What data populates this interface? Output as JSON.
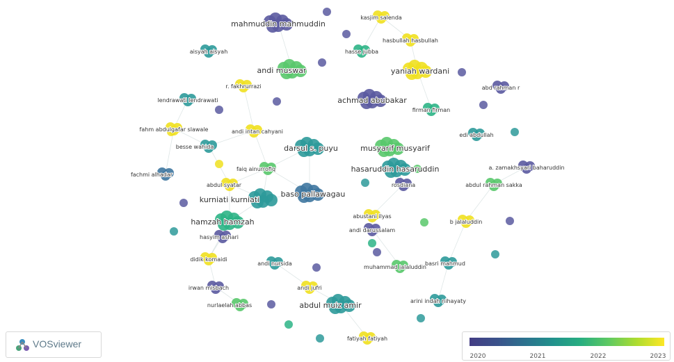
{
  "app": {
    "logo_text": "VOSviewer"
  },
  "legend": {
    "ticks": [
      "2020",
      "2021",
      "2022",
      "2023"
    ],
    "colors": [
      "#433d84",
      "#3b528b",
      "#2c728e",
      "#21918c",
      "#28ae80",
      "#5ec962",
      "#addc30",
      "#fde725"
    ]
  },
  "palette": {
    "2020": "#5b5aa0",
    "2020.5": "#3f77a0",
    "2021": "#2e9a9a",
    "2021.5": "#2db486",
    "2022": "#59c86b",
    "2023": "#f0e020"
  },
  "nodes": [
    {
      "label": "mahmuddin mahmuddin",
      "year": "2020",
      "size": "large"
    },
    {
      "label": "kasjim salenda",
      "year": "2023",
      "size": "small"
    },
    {
      "label": "hasbullah hasbullah",
      "year": "2023",
      "size": "small"
    },
    {
      "label": "aisyah aisyah",
      "year": "2021",
      "size": "small"
    },
    {
      "label": "hasse jubba",
      "year": "2021.5",
      "size": "small"
    },
    {
      "label": "andi muswar",
      "year": "2022",
      "size": "large"
    },
    {
      "label": "yaniah wardani",
      "year": "2023",
      "size": "large"
    },
    {
      "label": "r. fakhrurrazi",
      "year": "2023",
      "size": "small"
    },
    {
      "label": "abd rahman r",
      "year": "2020",
      "size": "small"
    },
    {
      "label": "lendrawati lendrawati",
      "year": "2021",
      "size": "small"
    },
    {
      "label": "achmad abubakar",
      "year": "2020",
      "size": "large"
    },
    {
      "label": "firman firman",
      "year": "2021.5",
      "size": "small"
    },
    {
      "label": "fahm abdulgafar slawale",
      "year": "2023",
      "size": "small"
    },
    {
      "label": "andi intan cahyani",
      "year": "2023",
      "size": "small"
    },
    {
      "label": "edi abdullah",
      "year": "2021",
      "size": "small"
    },
    {
      "label": "besse wahida",
      "year": "2021",
      "size": "small"
    },
    {
      "label": "darsul s. puyu",
      "year": "2021",
      "size": "large"
    },
    {
      "label": "musyarif musyarif",
      "year": "2022",
      "size": "large"
    },
    {
      "label": "faiq ainurrofiq",
      "year": "2022",
      "size": "small"
    },
    {
      "label": "hasaruddin hasaruddin",
      "year": "2021",
      "size": "large"
    },
    {
      "label": "a. zamakhsyari baharuddin",
      "year": "2020",
      "size": "small"
    },
    {
      "label": "fachmi alhadar",
      "year": "2020.5",
      "size": "small"
    },
    {
      "label": "abdul syatar",
      "year": "2023",
      "size": "small"
    },
    {
      "label": "rosdiana",
      "year": "2020",
      "size": "small"
    },
    {
      "label": "abdul rahman sakka",
      "year": "2022",
      "size": "small"
    },
    {
      "label": "baso pallawagau",
      "year": "2020.5",
      "size": "large"
    },
    {
      "label": "kurniati kurniati",
      "year": "2021",
      "size": "large"
    },
    {
      "label": "abustani ilyas",
      "year": "2023",
      "size": "small"
    },
    {
      "label": "hamzah hamzah",
      "year": "2021.5",
      "size": "large"
    },
    {
      "label": "b jalaluddin",
      "year": "2023",
      "size": "small"
    },
    {
      "label": "hasyim ashari",
      "year": "2020",
      "size": "small"
    },
    {
      "label": "andi darussalam",
      "year": "2020",
      "size": "small"
    },
    {
      "label": "didik komaidi",
      "year": "2023",
      "size": "small"
    },
    {
      "label": "andi nursida",
      "year": "2021",
      "size": "small"
    },
    {
      "label": "muhammad jalaluddin",
      "year": "2022",
      "size": "small"
    },
    {
      "label": "basri mahmud",
      "year": "2021",
      "size": "small"
    },
    {
      "label": "irwan misbach",
      "year": "2020",
      "size": "small"
    },
    {
      "label": "andi jufri",
      "year": "2023",
      "size": "small"
    },
    {
      "label": "arini indah nihayaty",
      "year": "2021",
      "size": "small"
    },
    {
      "label": "nurlaelah abbas",
      "year": "2022",
      "size": "small"
    },
    {
      "label": "abdul muiz amir",
      "year": "2021",
      "size": "large"
    },
    {
      "label": "fatiyah fatiyah",
      "year": "2023",
      "size": "small"
    }
  ],
  "extra_dots": [
    {
      "year": "2020"
    },
    {
      "year": "2020"
    },
    {
      "year": "2020"
    },
    {
      "year": "2020"
    },
    {
      "year": "2020"
    },
    {
      "year": "2020"
    },
    {
      "year": "2020"
    },
    {
      "year": "2021"
    },
    {
      "year": "2022"
    },
    {
      "year": "2023"
    },
    {
      "year": "2023"
    },
    {
      "year": "2021"
    },
    {
      "year": "2020"
    },
    {
      "year": "2021.5"
    },
    {
      "year": "2020"
    },
    {
      "year": "2022"
    },
    {
      "year": "2021"
    },
    {
      "year": "2020"
    },
    {
      "year": "2021"
    },
    {
      "year": "2020"
    },
    {
      "year": "2021.5"
    },
    {
      "year": "2020"
    },
    {
      "year": "2021"
    },
    {
      "year": "2021"
    }
  ]
}
